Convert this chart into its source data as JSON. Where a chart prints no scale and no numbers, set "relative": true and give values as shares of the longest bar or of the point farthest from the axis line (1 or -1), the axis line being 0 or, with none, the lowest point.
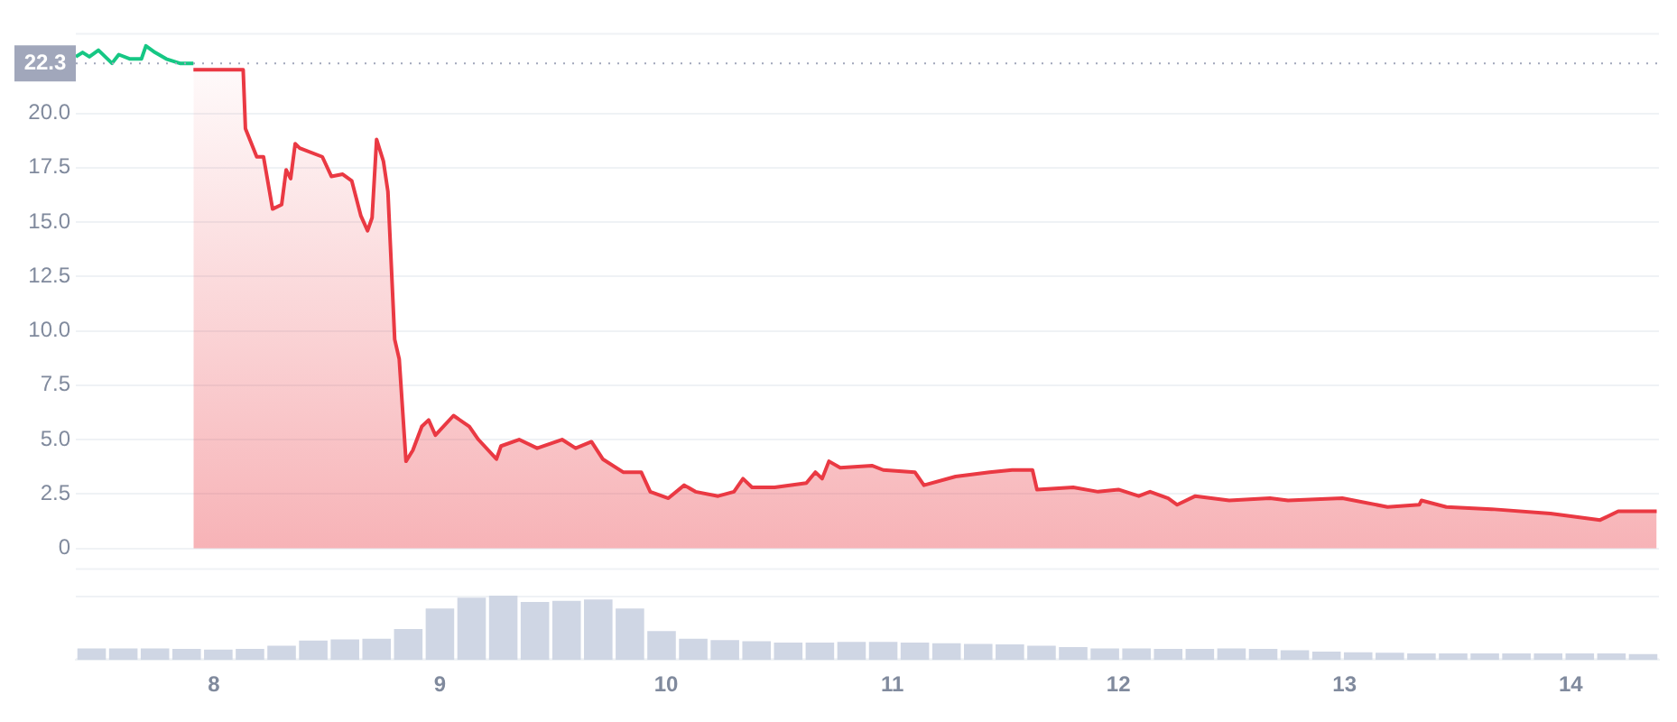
{
  "chart_data": [
    {
      "type": "area",
      "xlim": [
        7.39,
        14.39
      ],
      "xticks": [
        8,
        9,
        10,
        11,
        12,
        13,
        14
      ],
      "ylim": [
        -1,
        23.7
      ],
      "yticks": [
        {
          "value": 0,
          "label": "0"
        },
        {
          "value": 2.5,
          "label": "2.5"
        },
        {
          "value": 5,
          "label": "5.0"
        },
        {
          "value": 7.5,
          "label": "7.5"
        },
        {
          "value": 10,
          "label": "10.0"
        },
        {
          "value": 12.5,
          "label": "12.5"
        },
        {
          "value": 15,
          "label": "15.0"
        },
        {
          "value": 17.5,
          "label": "17.5"
        },
        {
          "value": 20,
          "label": "20.0"
        }
      ],
      "grid": "y",
      "legend": false,
      "marker": "none",
      "tick_labels": "y",
      "ref_lines": [
        {
          "axis": "y",
          "value": 22.3,
          "label": "22.3",
          "color": "#a1a7bb",
          "line_style": "dotted"
        }
      ],
      "series": [
        {
          "type": "line",
          "color": "#16c784",
          "x": [
            7.39,
            7.42,
            7.45,
            7.49,
            7.55,
            7.58,
            7.63,
            7.68,
            7.7,
            7.74,
            7.79,
            7.85,
            7.91
          ],
          "values": [
            22.6,
            22.8,
            22.6,
            22.9,
            22.3,
            22.7,
            22.5,
            22.5,
            23.1,
            22.8,
            22.5,
            22.3,
            22.3
          ]
        },
        {
          "type": "area",
          "color": "#ea3943",
          "x": [
            7.91,
            8.13,
            8.14,
            8.19,
            8.22,
            8.26,
            8.3,
            8.32,
            8.34,
            8.36,
            8.38,
            8.48,
            8.52,
            8.57,
            8.61,
            8.65,
            8.68,
            8.7,
            8.72,
            8.75,
            8.77,
            8.8,
            8.82,
            8.85,
            8.88,
            8.92,
            8.95,
            8.98,
            9.06,
            9.13,
            9.17,
            9.25,
            9.27,
            9.35,
            9.43,
            9.54,
            9.6,
            9.67,
            9.72,
            9.81,
            9.89,
            9.93,
            10.01,
            10.08,
            10.13,
            10.23,
            10.3,
            10.34,
            10.38,
            10.48,
            10.62,
            10.66,
            10.69,
            10.72,
            10.77,
            10.91,
            10.96,
            11.1,
            11.14,
            11.28,
            11.43,
            11.53,
            11.62,
            11.64,
            11.8,
            11.91,
            12.0,
            12.09,
            12.14,
            12.22,
            12.26,
            12.34,
            12.49,
            12.67,
            12.75,
            12.99,
            13.19,
            13.33,
            13.34,
            13.45,
            13.65,
            13.91,
            14.13,
            14.21,
            14.38
          ],
          "values": [
            22.0,
            22.0,
            19.3,
            18.0,
            18.0,
            15.6,
            15.8,
            17.4,
            17.0,
            18.6,
            18.4,
            18.0,
            17.1,
            17.2,
            16.9,
            15.3,
            14.6,
            15.2,
            18.8,
            17.8,
            16.4,
            9.6,
            8.7,
            4.0,
            4.5,
            5.6,
            5.9,
            5.2,
            6.1,
            5.6,
            5.0,
            4.1,
            4.7,
            5.0,
            4.6,
            5.0,
            4.6,
            4.9,
            4.1,
            3.5,
            3.5,
            2.6,
            2.3,
            2.9,
            2.6,
            2.4,
            2.6,
            3.2,
            2.8,
            2.8,
            3.0,
            3.5,
            3.2,
            4.0,
            3.7,
            3.8,
            3.6,
            3.5,
            2.9,
            3.3,
            3.5,
            3.6,
            3.6,
            2.7,
            2.8,
            2.6,
            2.7,
            2.4,
            2.6,
            2.3,
            2.0,
            2.4,
            2.2,
            2.3,
            2.2,
            2.3,
            1.9,
            2.0,
            2.2,
            1.9,
            1.8,
            1.6,
            1.3,
            1.7,
            1.7
          ]
        }
      ]
    },
    {
      "type": "bar",
      "relative": true,
      "xlim": [
        7.39,
        14.39
      ],
      "xticks": [
        8,
        9,
        10,
        11,
        12,
        13,
        14
      ],
      "tick_labels": "x",
      "color": "#cfd6e4",
      "x": [
        7.46,
        7.6,
        7.74,
        7.88,
        8.02,
        8.16,
        8.3,
        8.44,
        8.58,
        8.72,
        8.86,
        9.0,
        9.14,
        9.28,
        9.42,
        9.56,
        9.7,
        9.84,
        9.98,
        10.12,
        10.26,
        10.4,
        10.54,
        10.68,
        10.82,
        10.96,
        11.1,
        11.24,
        11.38,
        11.52,
        11.66,
        11.8,
        11.94,
        12.08,
        12.22,
        12.36,
        12.5,
        12.64,
        12.78,
        12.92,
        13.06,
        13.2,
        13.34,
        13.48,
        13.62,
        13.76,
        13.9,
        14.04,
        14.18,
        14.32
      ],
      "values": [
        0.18,
        0.18,
        0.18,
        0.17,
        0.16,
        0.17,
        0.22,
        0.3,
        0.32,
        0.33,
        0.48,
        0.8,
        0.97,
        1.0,
        0.9,
        0.92,
        0.94,
        0.8,
        0.45,
        0.33,
        0.31,
        0.29,
        0.27,
        0.27,
        0.28,
        0.28,
        0.27,
        0.26,
        0.25,
        0.24,
        0.22,
        0.2,
        0.18,
        0.18,
        0.17,
        0.17,
        0.18,
        0.17,
        0.15,
        0.13,
        0.12,
        0.11,
        0.1,
        0.1,
        0.1,
        0.1,
        0.1,
        0.1,
        0.1,
        0.09
      ]
    }
  ]
}
